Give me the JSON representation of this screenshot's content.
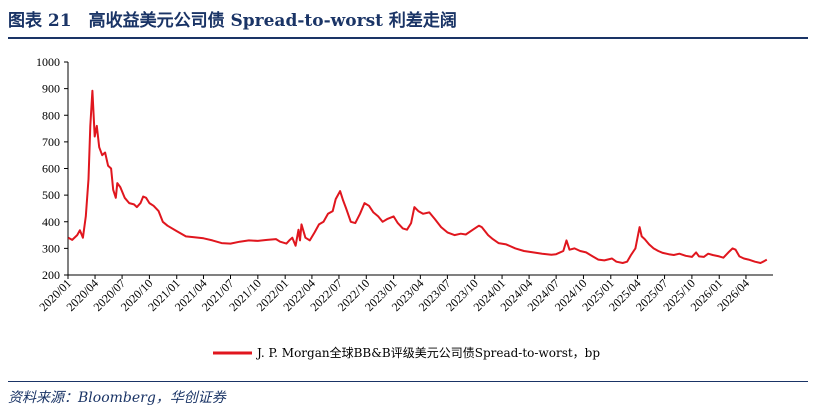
{
  "figure": {
    "title": "图表 21　高收益美元公司债 Spread-to-worst 利差走阔",
    "source": "资料来源：Bloomberg，华创证券"
  },
  "colors": {
    "series": "#e0161e",
    "accent": "#1a3466",
    "axis": "#000000"
  },
  "chart_data": {
    "type": "line",
    "title": "图表 21　高收益美元公司债 Spread-to-worst 利差走阔",
    "xlabel": "",
    "ylabel": "",
    "ylim": [
      200,
      1000
    ],
    "yticks": [
      200,
      300,
      400,
      500,
      600,
      700,
      800,
      900,
      1000
    ],
    "xrange": [
      "2020/01",
      "2026/07"
    ],
    "xticks": [
      "2020/01",
      "2020/04",
      "2020/07",
      "2020/10",
      "2021/01",
      "2021/04",
      "2021/07",
      "2021/10",
      "2022/01",
      "2022/04",
      "2022/07",
      "2022/10",
      "2023/01",
      "2023/04",
      "2023/07",
      "2023/10",
      "2024/01",
      "2024/04",
      "2024/07",
      "2024/10",
      "2025/01",
      "2025/04",
      "2025/07",
      "2025/10",
      "2026/01",
      "2026/04"
    ],
    "grid": false,
    "legend_position": "bottom",
    "series": [
      {
        "name": "J. P. Morgan全球BB&B评级美元公司债Spread-to-worst，bp",
        "color": "#e0161e",
        "points": [
          [
            "2020/01/02",
            340
          ],
          [
            "2020/01/15",
            332
          ],
          [
            "2020/02/01",
            350
          ],
          [
            "2020/02/10",
            368
          ],
          [
            "2020/02/20",
            340
          ],
          [
            "2020/03/01",
            420
          ],
          [
            "2020/03/10",
            560
          ],
          [
            "2020/03/16",
            760
          ],
          [
            "2020/03/23",
            892
          ],
          [
            "2020/03/31",
            720
          ],
          [
            "2020/04/07",
            760
          ],
          [
            "2020/04/15",
            680
          ],
          [
            "2020/04/25",
            650
          ],
          [
            "2020/05/05",
            660
          ],
          [
            "2020/05/15",
            610
          ],
          [
            "2020/05/25",
            600
          ],
          [
            "2020/06/01",
            520
          ],
          [
            "2020/06/10",
            490
          ],
          [
            "2020/06/15",
            545
          ],
          [
            "2020/06/25",
            530
          ],
          [
            "2020/07/10",
            490
          ],
          [
            "2020/07/25",
            470
          ],
          [
            "2020/08/10",
            465
          ],
          [
            "2020/08/20",
            455
          ],
          [
            "2020/09/01",
            470
          ],
          [
            "2020/09/10",
            495
          ],
          [
            "2020/09/20",
            490
          ],
          [
            "2020/10/01",
            470
          ],
          [
            "2020/10/15",
            460
          ],
          [
            "2020/11/01",
            440
          ],
          [
            "2020/11/15",
            400
          ],
          [
            "2020/12/01",
            385
          ],
          [
            "2021/01/01",
            365
          ],
          [
            "2021/02/01",
            345
          ],
          [
            "2021/03/01",
            342
          ],
          [
            "2021/04/01",
            338
          ],
          [
            "2021/05/01",
            330
          ],
          [
            "2021/06/01",
            320
          ],
          [
            "2021/07/01",
            318
          ],
          [
            "2021/08/01",
            325
          ],
          [
            "2021/09/01",
            330
          ],
          [
            "2021/10/01",
            328
          ],
          [
            "2021/11/01",
            332
          ],
          [
            "2021/12/01",
            335
          ],
          [
            "2021/12/15",
            325
          ],
          [
            "2022/01/05",
            318
          ],
          [
            "2022/01/15",
            330
          ],
          [
            "2022/01/25",
            340
          ],
          [
            "2022/02/05",
            310
          ],
          [
            "2022/02/15",
            370
          ],
          [
            "2022/02/20",
            330
          ],
          [
            "2022/02/25",
            390
          ],
          [
            "2022/03/10",
            340
          ],
          [
            "2022/03/25",
            330
          ],
          [
            "2022/04/10",
            360
          ],
          [
            "2022/04/25",
            390
          ],
          [
            "2022/05/10",
            400
          ],
          [
            "2022/05/25",
            430
          ],
          [
            "2022/06/10",
            440
          ],
          [
            "2022/06/20",
            485
          ],
          [
            "2022/07/05",
            515
          ],
          [
            "2022/07/15",
            480
          ],
          [
            "2022/07/25",
            450
          ],
          [
            "2022/08/10",
            400
          ],
          [
            "2022/08/25",
            395
          ],
          [
            "2022/09/10",
            430
          ],
          [
            "2022/09/25",
            470
          ],
          [
            "2022/10/10",
            460
          ],
          [
            "2022/10/25",
            435
          ],
          [
            "2022/11/10",
            420
          ],
          [
            "2022/11/25",
            400
          ],
          [
            "2022/12/10",
            410
          ],
          [
            "2023/01/01",
            420
          ],
          [
            "2023/01/15",
            395
          ],
          [
            "2023/02/01",
            375
          ],
          [
            "2023/02/15",
            370
          ],
          [
            "2023/03/01",
            395
          ],
          [
            "2023/03/12",
            455
          ],
          [
            "2023/03/25",
            440
          ],
          [
            "2023/04/10",
            430
          ],
          [
            "2023/05/01",
            435
          ],
          [
            "2023/05/20",
            410
          ],
          [
            "2023/06/10",
            380
          ],
          [
            "2023/07/01",
            360
          ],
          [
            "2023/07/25",
            350
          ],
          [
            "2023/08/15",
            355
          ],
          [
            "2023/09/01",
            352
          ],
          [
            "2023/09/25",
            370
          ],
          [
            "2023/10/15",
            385
          ],
          [
            "2023/10/25",
            380
          ],
          [
            "2023/11/15",
            350
          ],
          [
            "2023/12/01",
            335
          ],
          [
            "2023/12/20",
            320
          ],
          [
            "2024/01/15",
            315
          ],
          [
            "2024/02/15",
            300
          ],
          [
            "2024/03/15",
            290
          ],
          [
            "2024/04/15",
            285
          ],
          [
            "2024/05/15",
            280
          ],
          [
            "2024/06/15",
            276
          ],
          [
            "2024/07/01",
            278
          ],
          [
            "2024/07/25",
            290
          ],
          [
            "2024/08/05",
            330
          ],
          [
            "2024/08/15",
            295
          ],
          [
            "2024/09/01",
            300
          ],
          [
            "2024/09/20",
            290
          ],
          [
            "2024/10/10",
            285
          ],
          [
            "2024/11/01",
            270
          ],
          [
            "2024/11/20",
            258
          ],
          [
            "2024/12/10",
            255
          ],
          [
            "2025/01/05",
            262
          ],
          [
            "2025/01/20",
            250
          ],
          [
            "2025/02/10",
            245
          ],
          [
            "2025/02/25",
            250
          ],
          [
            "2025/03/10",
            275
          ],
          [
            "2025/03/25",
            300
          ],
          [
            "2025/04/08",
            380
          ],
          [
            "2025/04/15",
            345
          ],
          [
            "2025/04/25",
            335
          ],
          [
            "2025/05/10",
            315
          ],
          [
            "2025/05/25",
            300
          ],
          [
            "2025/06/10",
            290
          ],
          [
            "2025/06/25",
            283
          ],
          [
            "2025/07/15",
            278
          ],
          [
            "2025/08/01",
            275
          ],
          [
            "2025/08/20",
            280
          ],
          [
            "2025/09/10",
            272
          ],
          [
            "2025/10/01",
            268
          ],
          [
            "2025/10/15",
            285
          ],
          [
            "2025/10/25",
            270
          ],
          [
            "2025/11/10",
            268
          ],
          [
            "2025/11/25",
            280
          ],
          [
            "2025/12/10",
            275
          ],
          [
            "2026/01/01",
            270
          ],
          [
            "2026/01/15",
            265
          ],
          [
            "2026/02/01",
            285
          ],
          [
            "2026/02/15",
            300
          ],
          [
            "2026/02/25",
            295
          ],
          [
            "2026/03/10",
            270
          ],
          [
            "2026/03/25",
            262
          ],
          [
            "2026/04/10",
            258
          ],
          [
            "2026/05/01",
            250
          ],
          [
            "2026/05/20",
            245
          ],
          [
            "2026/06/01",
            252
          ],
          [
            "2026/06/10",
            258
          ]
        ]
      }
    ]
  }
}
